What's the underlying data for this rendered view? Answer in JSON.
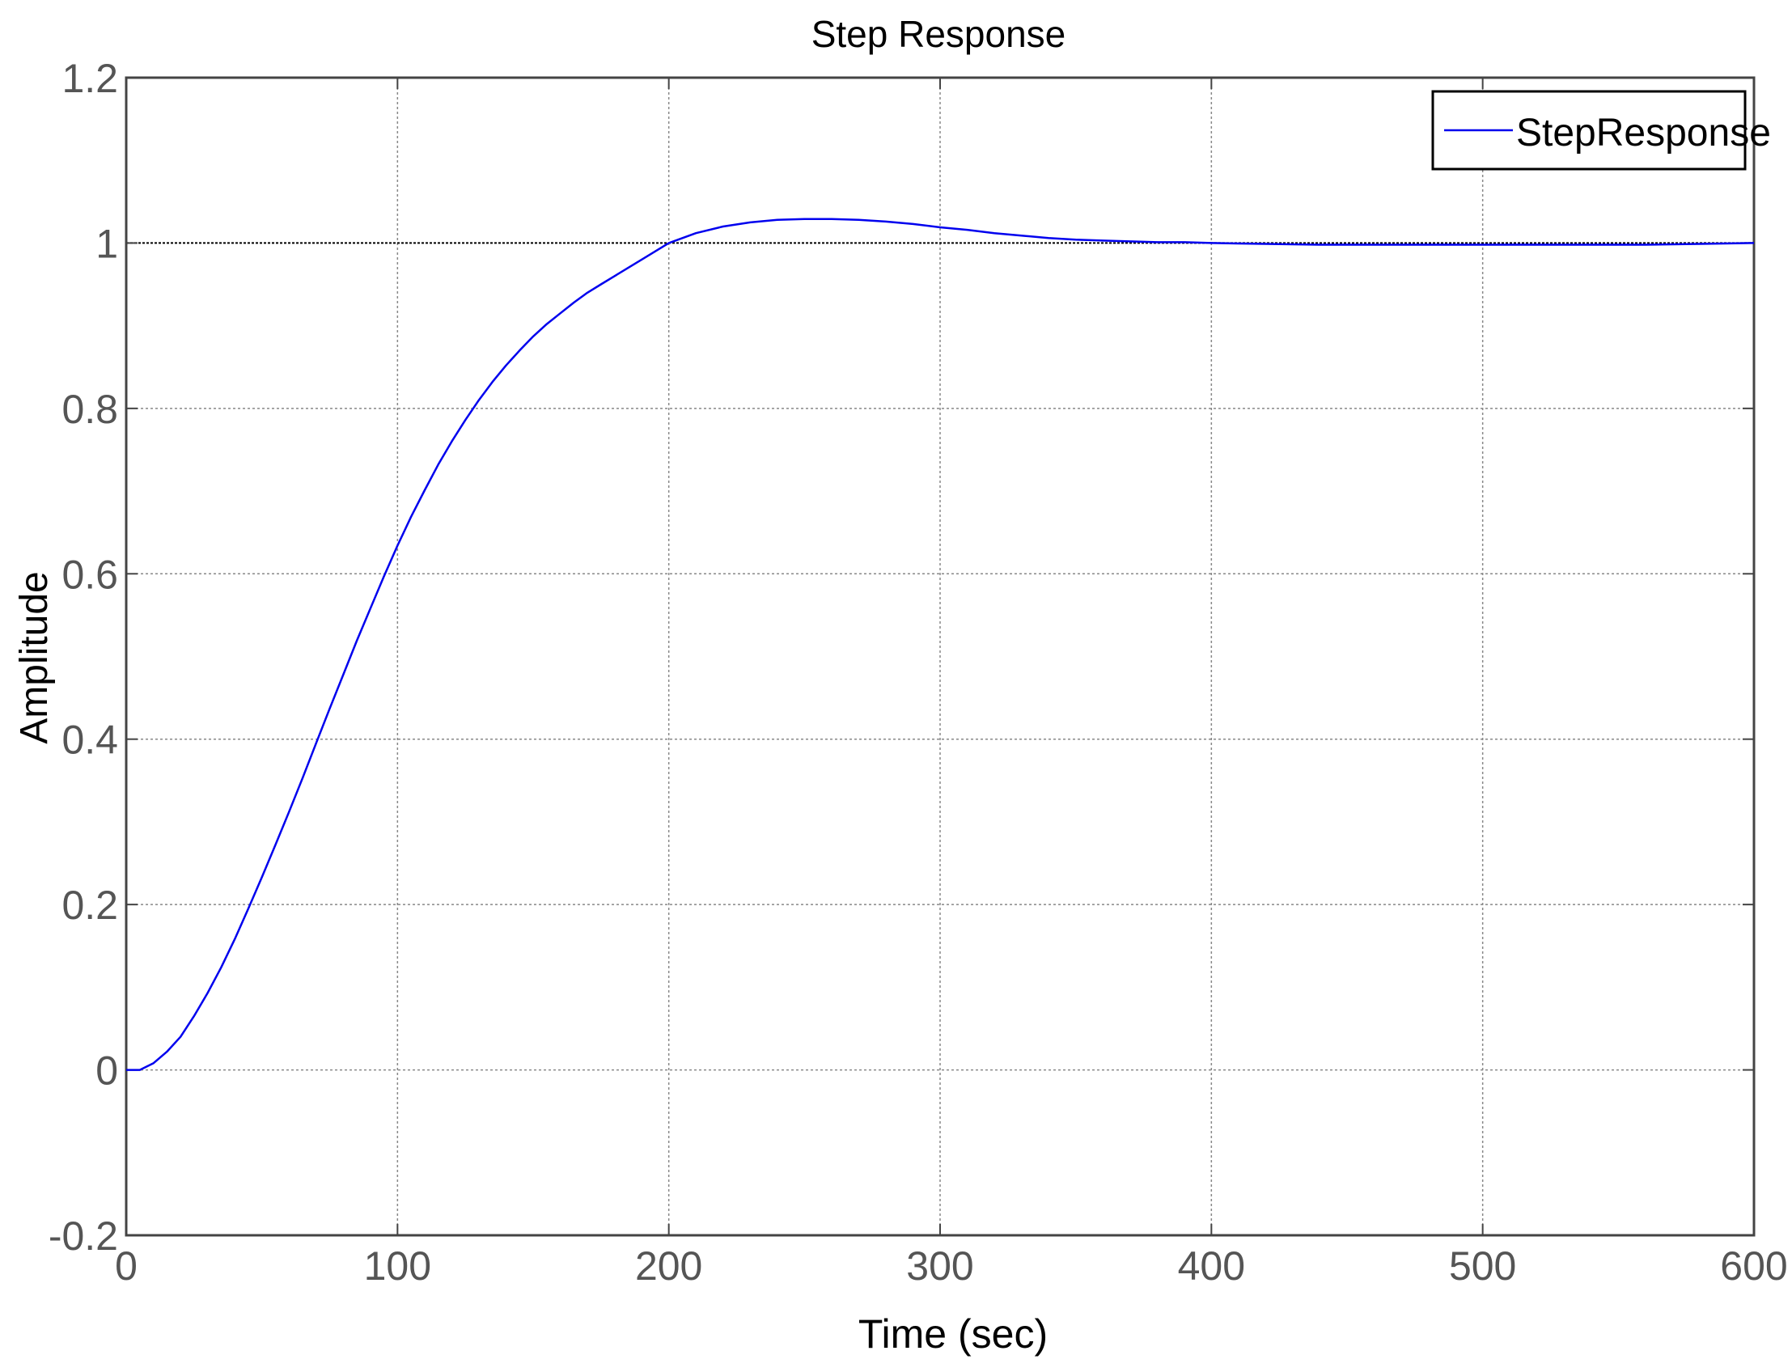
{
  "chart_data": {
    "type": "line",
    "title": "Step Response",
    "xlabel": "Time (sec)",
    "ylabel": "Amplitude",
    "xlim": [
      0,
      600
    ],
    "ylim": [
      -0.2,
      1.2
    ],
    "x_ticks": [
      "0",
      "100",
      "200",
      "300",
      "400",
      "500",
      "600"
    ],
    "y_ticks": [
      "-0.2",
      "0",
      "0.2",
      "0.4",
      "0.6",
      "0.8",
      "1",
      "1.2"
    ],
    "grid": true,
    "legend_position": "top-right",
    "reference_line": 1,
    "series": [
      {
        "name": "StepResponse",
        "color": "#0000ee",
        "x": [
          0,
          5,
          10,
          15,
          20,
          25,
          30,
          35,
          40,
          45,
          50,
          55,
          60,
          65,
          70,
          75,
          80,
          85,
          90,
          95,
          100,
          105,
          110,
          115,
          120,
          125,
          130,
          135,
          140,
          145,
          150,
          155,
          160,
          165,
          170,
          175,
          180,
          185,
          190,
          195,
          200,
          210,
          220,
          230,
          240,
          250,
          260,
          270,
          280,
          290,
          300,
          310,
          320,
          330,
          340,
          350,
          360,
          370,
          380,
          390,
          400,
          420,
          440,
          460,
          480,
          500,
          520,
          540,
          560,
          580,
          600
        ],
        "y": [
          0,
          0,
          0.008,
          0.022,
          0.04,
          0.065,
          0.093,
          0.124,
          0.158,
          0.195,
          0.233,
          0.272,
          0.312,
          0.353,
          0.395,
          0.437,
          0.478,
          0.519,
          0.558,
          0.597,
          0.634,
          0.669,
          0.701,
          0.732,
          0.76,
          0.786,
          0.81,
          0.832,
          0.852,
          0.87,
          0.887,
          0.902,
          0.915,
          0.928,
          0.94,
          0.95,
          0.96,
          0.97,
          0.98,
          0.99,
          1.0,
          1.012,
          1.02,
          1.025,
          1.028,
          1.029,
          1.029,
          1.028,
          1.026,
          1.023,
          1.019,
          1.016,
          1.012,
          1.009,
          1.006,
          1.004,
          1.003,
          1.002,
          1.001,
          1.001,
          1.0,
          0.999,
          0.998,
          0.998,
          0.998,
          0.998,
          0.998,
          0.998,
          0.998,
          0.999,
          1.0
        ]
      }
    ]
  }
}
